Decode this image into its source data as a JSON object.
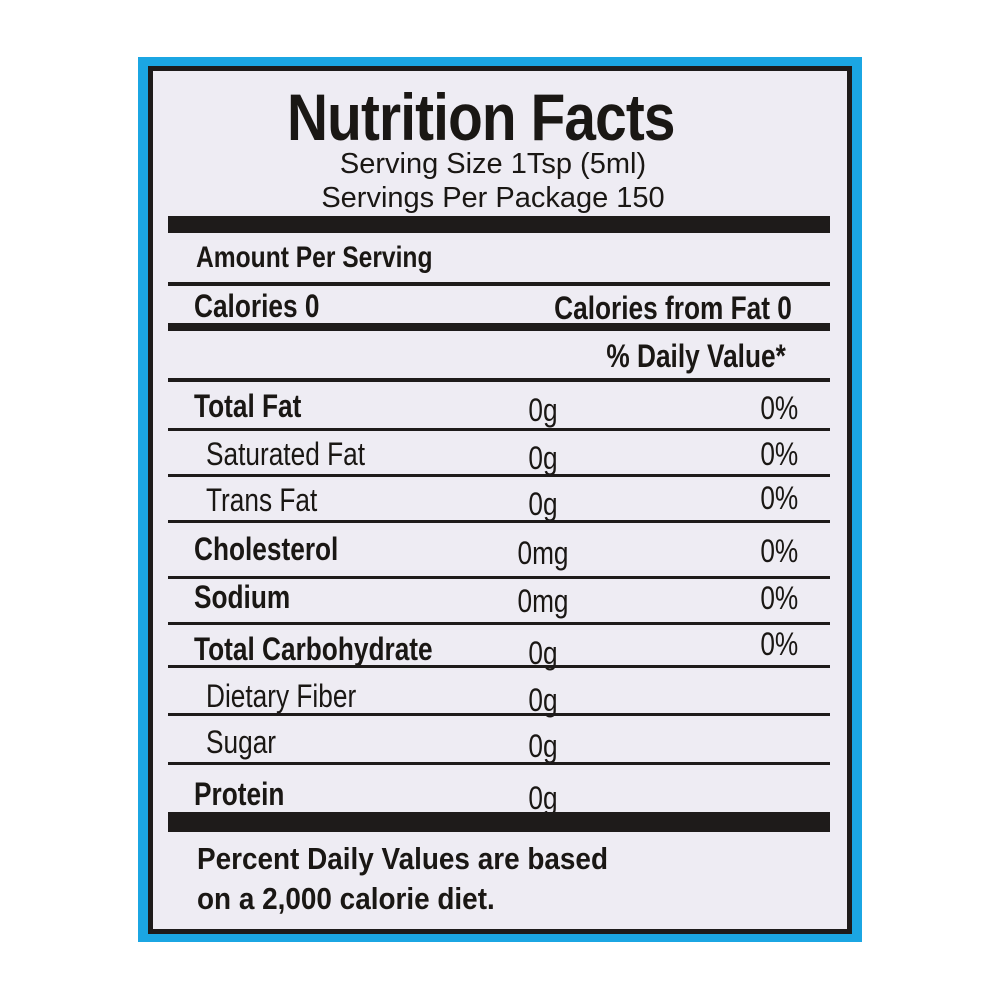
{
  "title": "Nutrition Facts",
  "serving_size": "Serving Size 1Tsp (5ml)",
  "servings_per_package": "Servings Per Package 150",
  "amount_per_serving": "Amount Per Serving",
  "calories": "Calories 0",
  "calories_from_fat": "Calories from Fat 0",
  "daily_value_header": "% Daily Value*",
  "nutrients": [
    {
      "name": "Total Fat",
      "amount": "0g",
      "dv": "0%",
      "bold": true
    },
    {
      "name": "Saturated Fat",
      "amount": "0g",
      "dv": "0%",
      "bold": false
    },
    {
      "name": "Trans Fat",
      "amount": "0g",
      "dv": "0%",
      "bold": false
    },
    {
      "name": "Cholesterol",
      "amount": "0mg",
      "dv": "0%",
      "bold": true
    },
    {
      "name": "Sodium",
      "amount": "0mg",
      "dv": "0%",
      "bold": true
    },
    {
      "name": "Total Carbohydrate",
      "amount": "0g",
      "dv": "0%",
      "bold": true
    },
    {
      "name": "Dietary Fiber",
      "amount": "0g",
      "dv": "",
      "bold": false
    },
    {
      "name": "Sugar",
      "amount": "0g",
      "dv": "",
      "bold": false
    },
    {
      "name": "Protein",
      "amount": "0g",
      "dv": "",
      "bold": true
    }
  ],
  "footnote_line1": "Percent Daily Values are based",
  "footnote_line2": "on a 2,000 calorie diet.",
  "colors": {
    "border_blue": "#1ba6e3",
    "ink": "#1e1b1a",
    "label_bg": "#eeecf3"
  }
}
